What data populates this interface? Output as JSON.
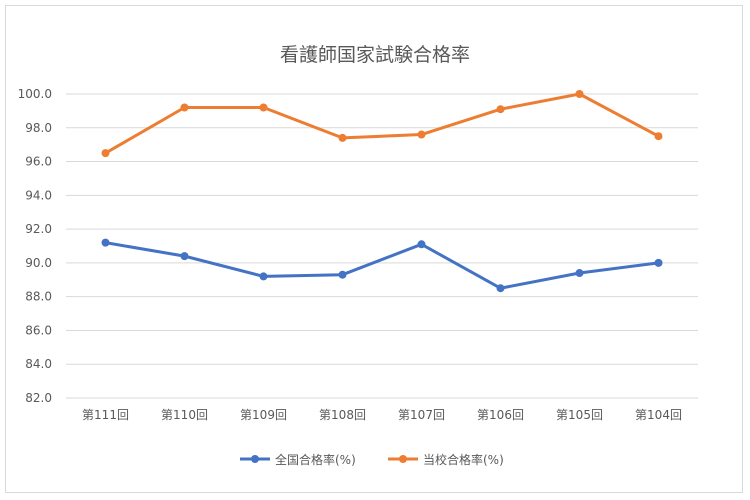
{
  "chart_data": {
    "type": "line",
    "title": "看護師国家試験合格率",
    "categories": [
      "第111回",
      "第110回",
      "第109回",
      "第108回",
      "第107回",
      "第106回",
      "第105回",
      "第104回"
    ],
    "ylim": [
      82,
      100
    ],
    "yticks": [
      "100.0",
      "98.0",
      "96.0",
      "94.0",
      "92.0",
      "90.0",
      "88.0",
      "86.0",
      "84.0",
      "82.0"
    ],
    "grid": true,
    "legend": "bottom",
    "series": [
      {
        "name": "全国合格率(%)",
        "color": "#4472C4",
        "values": [
          91.2,
          90.4,
          89.2,
          89.3,
          91.1,
          88.5,
          89.4,
          90.0
        ]
      },
      {
        "name": "当校合格率(%)",
        "color": "#ED7D31",
        "values": [
          96.5,
          99.2,
          99.2,
          97.4,
          97.6,
          99.1,
          100.0,
          97.5
        ]
      }
    ]
  }
}
